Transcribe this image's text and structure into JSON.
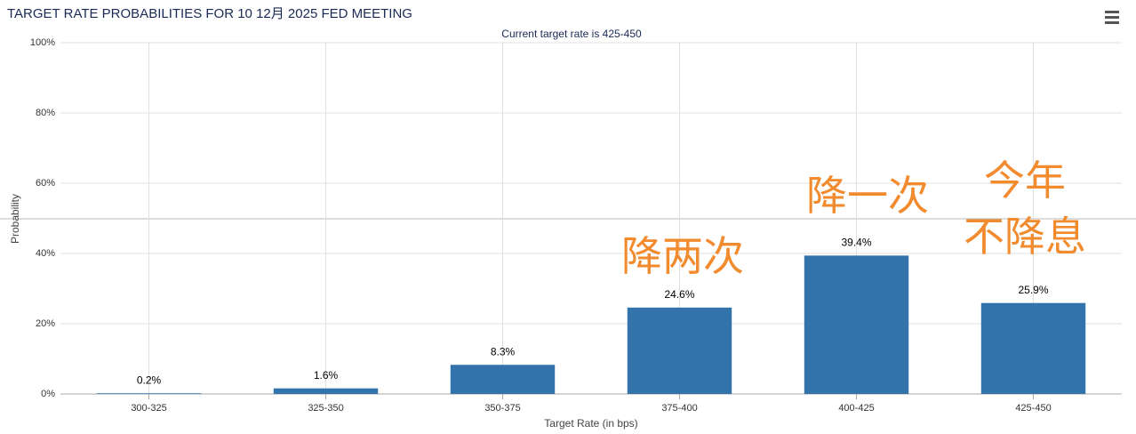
{
  "chart_data": {
    "type": "bar",
    "title": "TARGET RATE PROBABILITIES FOR 10 12月 2025 FED MEETING",
    "subtitle": "Current target rate is 425-450",
    "x_label": "Target Rate (in bps)",
    "y_label": "Probability",
    "categories": [
      "300-325",
      "325-350",
      "350-375",
      "375-400",
      "400-425",
      "425-450"
    ],
    "values": [
      0.2,
      1.6,
      8.3,
      24.6,
      39.4,
      25.9
    ],
    "value_labels": [
      "0.2%",
      "1.6%",
      "8.3%",
      "24.6%",
      "39.4%",
      "25.9%"
    ],
    "color": "#3373ab",
    "ylim": [
      0,
      100
    ],
    "yticks": [
      {
        "value": 0,
        "label": "0%"
      },
      {
        "value": 20,
        "label": "20%"
      },
      {
        "value": 40,
        "label": "40%"
      },
      {
        "value": 60,
        "label": "60%"
      },
      {
        "value": 80,
        "label": "80%"
      },
      {
        "value": 100,
        "label": "100%"
      }
    ],
    "grid": true,
    "annotations": [
      "降两次",
      "降一次",
      "今年",
      "不降息"
    ],
    "annotation_color": "#f28a2e"
  }
}
